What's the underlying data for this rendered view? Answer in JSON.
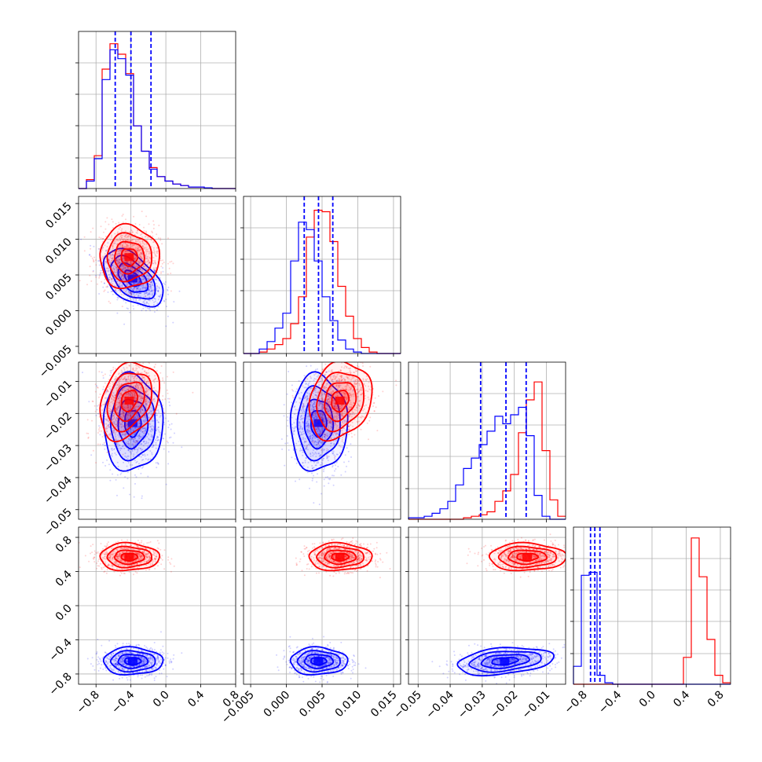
{
  "figure": {
    "colors": {
      "series_red": "#ff0000",
      "series_blue": "#0000ff",
      "grid": "#b0b0b0",
      "axis": "#000000"
    }
  },
  "chart_data": {
    "type": "corner",
    "grid": true,
    "parameters": [
      {
        "range": [
          -1.0,
          0.8
        ],
        "ticks": [
          -0.8,
          -0.4,
          0.0,
          0.4,
          0.8
        ],
        "tick_labels": [
          "−0.8",
          "−0.4",
          "0.0",
          "0.4",
          "0.8"
        ],
        "bins": 20,
        "red_hist": [
          0,
          0.06,
          0.22,
          0.8,
          0.97,
          0.9,
          0.77,
          0.42,
          0.25,
          0.14,
          0.08,
          0.05,
          0.03,
          0.02,
          0.01,
          0.01,
          0.005,
          0,
          0,
          0
        ],
        "blue_hist": [
          0,
          0.05,
          0.2,
          0.73,
          0.93,
          0.87,
          0.76,
          0.42,
          0.25,
          0.13,
          0.08,
          0.05,
          0.03,
          0.02,
          0.01,
          0.01,
          0.005,
          0,
          0,
          0
        ],
        "blue_quantiles": [
          -0.58,
          -0.4,
          -0.17
        ]
      },
      {
        "range": [
          -0.006,
          0.016
        ],
        "ticks": [
          -0.005,
          0.0,
          0.005,
          0.01,
          0.015
        ],
        "tick_labels": [
          "−0.005",
          "0.000",
          "0.005",
          "0.010",
          "0.015"
        ],
        "bins": 20,
        "red_hist": [
          0,
          0,
          0.01,
          0.03,
          0.06,
          0.1,
          0.2,
          0.38,
          0.78,
          0.96,
          0.95,
          0.75,
          0.45,
          0.25,
          0.1,
          0.04,
          0.01,
          0,
          0,
          0
        ],
        "blue_hist": [
          0,
          0,
          0.03,
          0.08,
          0.17,
          0.27,
          0.62,
          0.88,
          0.83,
          0.62,
          0.38,
          0.22,
          0.09,
          0.03,
          0.01,
          0,
          0,
          0,
          0,
          0
        ],
        "blue_quantiles": [
          0.0025,
          0.0045,
          0.0065
        ]
      },
      {
        "range": [
          -0.053,
          -0.004
        ],
        "ticks": [
          -0.05,
          -0.04,
          -0.03,
          -0.02,
          -0.01
        ],
        "tick_labels": [
          "−0.05",
          "−0.04",
          "−0.03",
          "−0.02",
          "−0.01"
        ],
        "bins": 20,
        "red_hist": [
          0,
          0,
          0,
          0,
          0,
          0,
          0,
          0.01,
          0.02,
          0.03,
          0.05,
          0.12,
          0.19,
          0.3,
          0.58,
          0.8,
          0.92,
          0.46,
          0.13,
          0.02
        ],
        "blue_hist": [
          0.01,
          0.01,
          0.02,
          0.04,
          0.07,
          0.12,
          0.23,
          0.34,
          0.41,
          0.5,
          0.59,
          0.69,
          0.64,
          0.7,
          0.75,
          0.56,
          0.16,
          0.02,
          0,
          0
        ],
        "blue_quantiles": [
          -0.0305,
          -0.0226,
          -0.0163
        ]
      },
      {
        "range": [
          -0.92,
          0.92
        ],
        "ticks": [
          -0.8,
          -0.4,
          0.0,
          0.4,
          0.8
        ],
        "tick_labels": [
          "−0.8",
          "−0.4",
          "0.0",
          "0.4",
          "0.8"
        ],
        "bins": 20,
        "red_hist": [
          0,
          0,
          0,
          0,
          0,
          0,
          0,
          0,
          0,
          0,
          0,
          0,
          0,
          0,
          0.18,
          0.98,
          0.72,
          0.3,
          0.06,
          0.01
        ],
        "blue_hist": [
          0.12,
          0.73,
          0.75,
          0.06,
          0.01,
          0,
          0,
          0,
          0,
          0,
          0,
          0,
          0,
          0,
          0,
          0,
          0,
          0,
          0,
          0
        ],
        "blue_quantiles": [
          -0.72,
          -0.67,
          -0.61
        ]
      }
    ],
    "y_tick_labels": {
      "row1": [
        "0.000",
        "0.005",
        "0.010",
        "0.015"
      ],
      "row2": [
        "−0.05",
        "−0.04",
        "−0.03",
        "−0.02",
        "−0.01"
      ],
      "row3": [
        "−0.8",
        "−0.4",
        "0.0",
        "0.4",
        "0.8"
      ]
    },
    "series": [
      {
        "color": "#ff0000",
        "means": [
          -0.42,
          0.0075,
          -0.016,
          0.57
        ],
        "sds": [
          0.17,
          0.0022,
          0.006,
          0.08
        ],
        "corr": [
          [
            1,
            0,
            0.3,
            0
          ],
          [
            0,
            1,
            0.2,
            0
          ],
          [
            0.3,
            0.2,
            1,
            0
          ],
          [
            0,
            0,
            0,
            1
          ]
        ]
      },
      {
        "color": "#0000ff",
        "means": [
          -0.38,
          0.0045,
          -0.023,
          -0.65
        ],
        "sds": [
          0.17,
          0.002,
          0.0075,
          0.08
        ],
        "corr": [
          [
            1,
            -0.5,
            0,
            0
          ],
          [
            -0.5,
            1,
            0,
            0
          ],
          [
            0,
            0,
            1,
            0.3
          ],
          [
            0,
            0,
            0.3,
            1
          ]
        ]
      }
    ]
  }
}
